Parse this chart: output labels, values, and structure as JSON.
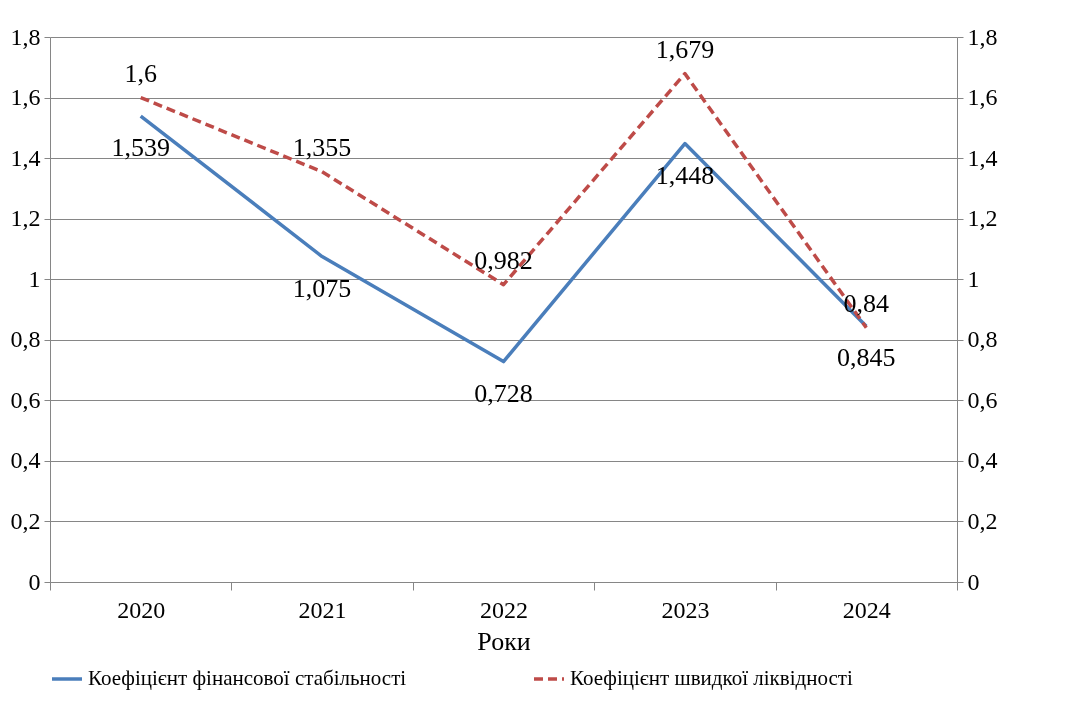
{
  "chart_data": {
    "type": "line",
    "xlabel": "Роки",
    "categories": [
      "2020",
      "2021",
      "2022",
      "2023",
      "2024"
    ],
    "series": [
      {
        "name": "Коефіцієнт фінансової стабільності",
        "color": "#4a7ebb",
        "line_style": "solid",
        "values": [
          1.539,
          1.075,
          0.728,
          1.448,
          0.845
        ],
        "value_labels": [
          "1,539",
          "1,075",
          "0,728",
          "1,448",
          "0,845"
        ]
      },
      {
        "name": "Коефіцієнт швидкої ліквідності",
        "color": "#be4b48",
        "line_style": "dashed",
        "axis": "y2",
        "values": [
          1.6,
          1.355,
          0.982,
          1.679,
          0.84
        ],
        "value_labels": [
          "1,6",
          "1,355",
          "0,982",
          "1,679",
          "0,84"
        ]
      }
    ],
    "ylim": [
      0,
      1.8
    ],
    "yticks": [
      0,
      {
        "value": 0.2,
        "label": "0,2"
      },
      {
        "value": 0.4,
        "label": "0,4"
      },
      {
        "value": 0.6,
        "label": "0,6"
      },
      {
        "value": 0.8,
        "label": "0,8"
      },
      1,
      {
        "value": 1.2,
        "label": "1,2"
      },
      {
        "value": 1.4,
        "label": "1,4"
      },
      {
        "value": 1.6,
        "label": "1,6"
      },
      {
        "value": 1.8,
        "label": "1,8"
      }
    ],
    "y2lim": [
      0,
      1.8
    ],
    "y2ticks": [
      0,
      {
        "value": 0.2,
        "label": "0,2"
      },
      {
        "value": 0.4,
        "label": "0,4"
      },
      {
        "value": 0.6,
        "label": "0,6"
      },
      {
        "value": 0.8,
        "label": "0,8"
      },
      1,
      {
        "value": 1.2,
        "label": "1,2"
      },
      {
        "value": 1.4,
        "label": "1,4"
      },
      {
        "value": 1.6,
        "label": "1,6"
      },
      {
        "value": 1.8,
        "label": "1,8"
      }
    ],
    "grid": "y",
    "legend": "bottom",
    "marker": "none"
  }
}
